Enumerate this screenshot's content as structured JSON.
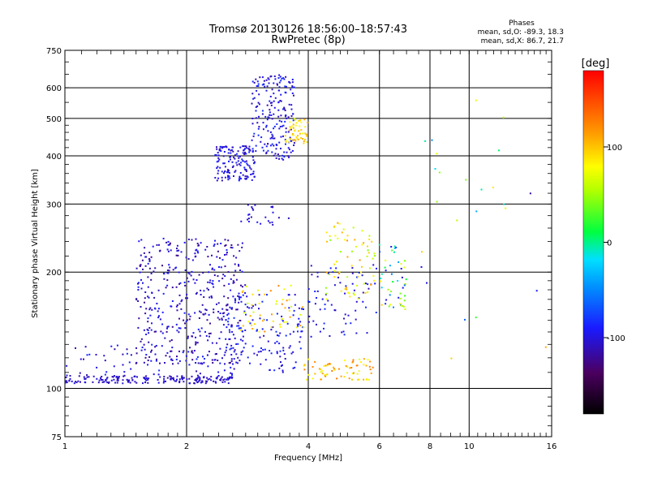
{
  "chart_data": {
    "type": "scatter",
    "title": "Tromsø 20130126 18:56:00–18:57:43",
    "subtitle": "RwPretec (8p)",
    "stats": {
      "heading": "Phases",
      "line1": "mean, sd,O: -89.3, 18.3",
      "line2": "mean, sd,X:  86.7, 21.7"
    },
    "xlabel": "Frequency [MHz]",
    "ylabel": "Stationary phase Virtual Height [km]",
    "xscale": "log",
    "yscale": "log",
    "xlim": [
      1,
      16
    ],
    "ylim": [
      75,
      750
    ],
    "xticks": [
      {
        "v": 1,
        "label": "1"
      },
      {
        "v": 2,
        "label": "2"
      },
      {
        "v": 4,
        "label": "4"
      },
      {
        "v": 6,
        "label": "6"
      },
      {
        "v": 8,
        "label": "8"
      },
      {
        "v": 10,
        "label": "10"
      },
      {
        "v": 16,
        "label": "16"
      }
    ],
    "xgrid": [
      2,
      4,
      6,
      8,
      10
    ],
    "yticks": [
      {
        "v": 75,
        "label": "75"
      },
      {
        "v": 100,
        "label": "100"
      },
      {
        "v": 200,
        "label": "200"
      },
      {
        "v": 300,
        "label": "300"
      },
      {
        "v": 400,
        "label": "400"
      },
      {
        "v": 500,
        "label": "500"
      },
      {
        "v": 600,
        "label": "600"
      },
      {
        "v": 750,
        "label": "750"
      }
    ],
    "ygrid": [
      100,
      200,
      300,
      400,
      500,
      600
    ],
    "grid": true,
    "colorbar": {
      "label": "[deg]",
      "range": [
        -180,
        180
      ],
      "ticks": [
        {
          "v": 100,
          "label": "100"
        },
        {
          "v": 0,
          "label": "0"
        },
        {
          "v": -100,
          "label": "-100"
        }
      ]
    },
    "clusters": [
      {
        "f": [
          1.0,
          2.6
        ],
        "h": [
          103,
          108
        ],
        "phase": [
          -115,
          -95
        ],
        "n": 190
      },
      {
        "f": [
          1.0,
          2.8
        ],
        "h": [
          108,
          130
        ],
        "phase": [
          -120,
          -80
        ],
        "n": 70
      },
      {
        "f": [
          1.5,
          2.8
        ],
        "h": [
          115,
          245
        ],
        "phase": [
          -125,
          -85
        ],
        "n": 430
      },
      {
        "f": [
          2.35,
          2.95
        ],
        "h": [
          345,
          425
        ],
        "phase": [
          -115,
          -85
        ],
        "n": 150
      },
      {
        "f": [
          2.9,
          3.7
        ],
        "h": [
          390,
          650
        ],
        "phase": [
          -115,
          -80
        ],
        "n": 200
      },
      {
        "f": [
          2.7,
          3.7
        ],
        "h": [
          265,
          300
        ],
        "phase": [
          -115,
          -90
        ],
        "n": 25
      },
      {
        "f": [
          2.5,
          3.9
        ],
        "h": [
          110,
          175
        ],
        "phase": [
          -110,
          -80
        ],
        "n": 140
      },
      {
        "f": [
          3.5,
          4.0
        ],
        "h": [
          430,
          500
        ],
        "phase": [
          70,
          110
        ],
        "n": 50
      },
      {
        "f": [
          2.7,
          3.9
        ],
        "h": [
          140,
          185
        ],
        "phase": [
          60,
          130
        ],
        "n": 50
      },
      {
        "f": [
          3.9,
          5.8
        ],
        "h": [
          105,
          120
        ],
        "phase": [
          70,
          130
        ],
        "n": 70
      },
      {
        "f": [
          4.0,
          5.9
        ],
        "h": [
          135,
          210
        ],
        "phase": [
          -110,
          -80
        ],
        "n": 70
      },
      {
        "f": [
          4.4,
          5.9
        ],
        "h": [
          170,
          270
        ],
        "phase": [
          40,
          120
        ],
        "n": 70
      },
      {
        "f": [
          6.0,
          7.0
        ],
        "h": [
          160,
          240
        ],
        "phase": [
          -110,
          100
        ],
        "n": 50
      },
      {
        "f": [
          7.5,
          15.5
        ],
        "h": [
          100,
          600
        ],
        "phase": [
          -120,
          110
        ],
        "n": 25
      }
    ]
  }
}
